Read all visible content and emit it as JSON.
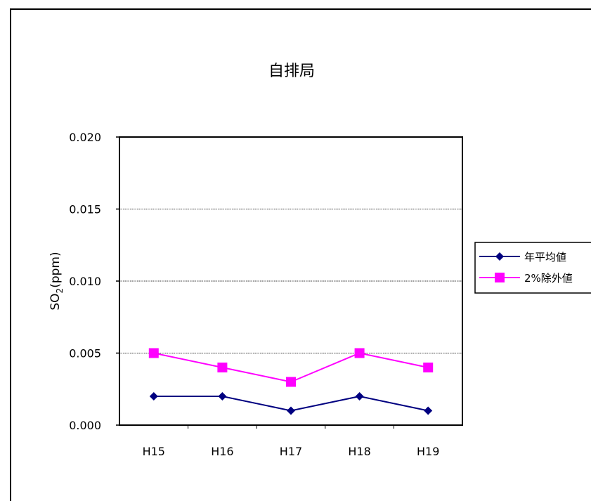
{
  "chart_data": {
    "type": "line",
    "title": "自排局",
    "ylabel": {
      "main": "SO",
      "sub": "2",
      "rest": "(ppm)"
    },
    "xlabel": "",
    "categories": [
      "H15",
      "H16",
      "H17",
      "H18",
      "H19"
    ],
    "yticks": [
      "0.000",
      "0.005",
      "0.010",
      "0.015",
      "0.020"
    ],
    "ylim": [
      0,
      0.02
    ],
    "grid": true,
    "legend_position": "right",
    "series": [
      {
        "name": "年平均値",
        "values": [
          0.002,
          0.002,
          0.001,
          0.002,
          0.001
        ],
        "color": "#000080",
        "marker": "diamond"
      },
      {
        "name": "2%除外値",
        "values": [
          0.005,
          0.004,
          0.003,
          0.005,
          0.004
        ],
        "color": "#ff00ff",
        "marker": "square"
      }
    ]
  }
}
